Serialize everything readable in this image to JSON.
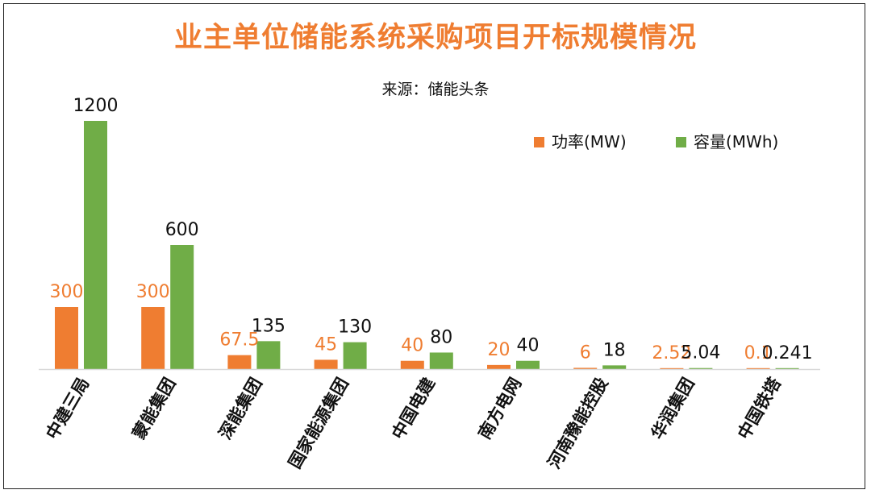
{
  "title": "业主单位储能系统采购项目开标规模情况",
  "subtitle": "来源：储能头条",
  "colors": {
    "power": "#ef7d31",
    "capacity": "#70ad47",
    "title": "#ef7d31",
    "axis": "#d9d9d9"
  },
  "chart_data": {
    "type": "bar",
    "title": "业主单位储能系统采购项目开标规模情况",
    "subtitle": "来源：储能头条",
    "categories": [
      "中建三局",
      "蒙能集团",
      "深能集团",
      "国家能源集团",
      "中国电建",
      "南方电网",
      "河南豫能控股",
      "华润集团",
      "中国铁塔"
    ],
    "series": [
      {
        "name": "功率(MW)",
        "values": [
          300,
          300,
          67.5,
          45,
          40,
          20,
          6,
          2.52,
          0.1
        ],
        "labels": [
          "300",
          "300",
          "67.5",
          "45",
          "40",
          "20",
          "6",
          "2.52",
          "0.1"
        ]
      },
      {
        "name": "容量(MWh)",
        "values": [
          1200,
          600,
          135,
          130,
          80,
          40,
          18,
          5.04,
          0.241
        ],
        "labels": [
          "1200",
          "600",
          "135",
          "130",
          "80",
          "40",
          "18",
          "5.04",
          "0.241"
        ]
      }
    ],
    "ylim": [
      0,
      1200
    ],
    "grid": false,
    "legend": "top-right"
  }
}
